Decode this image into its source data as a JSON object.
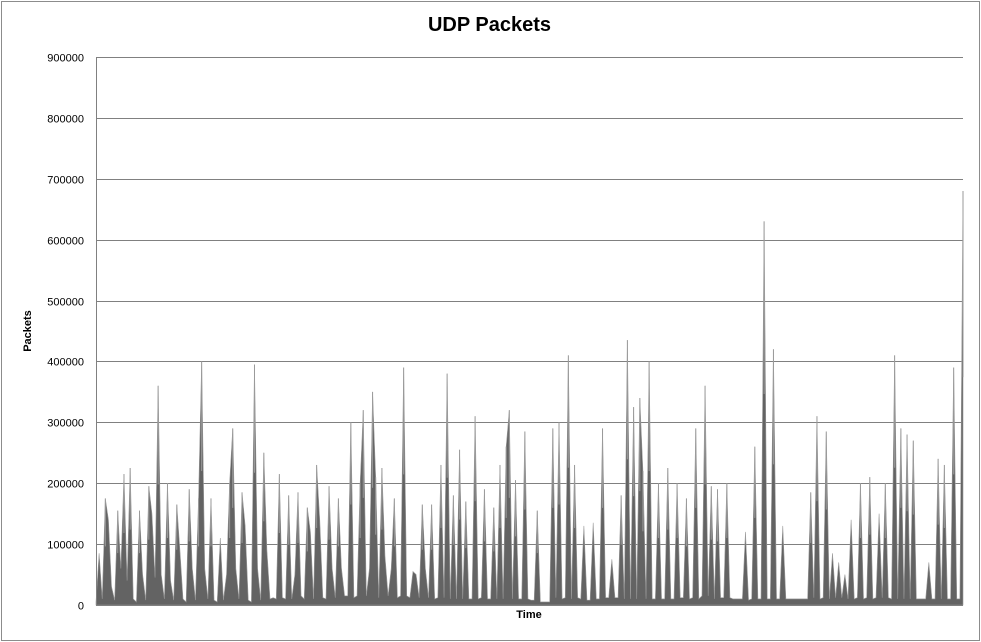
{
  "chart_data": {
    "type": "area",
    "title": "UDP Packets",
    "xlabel": "Time",
    "ylabel": "Packets",
    "ylim": [
      0,
      900000
    ],
    "yticks": [
      "900000",
      "800000",
      "700000",
      "600000",
      "500000",
      "400000",
      "300000",
      "200000",
      "100000",
      "0"
    ],
    "grid": true,
    "legend": "none",
    "colors": {
      "fill": "#636363",
      "spike": "#9a9a9a",
      "grid": "#808080"
    },
    "series": [
      {
        "values": [
          5000,
          85000,
          10000,
          175000,
          140000,
          30000,
          8000,
          155000,
          60000,
          215000,
          40000,
          225000,
          10000,
          5000,
          155000,
          50000,
          8000,
          195000,
          150000,
          45000,
          360000,
          50000,
          10000,
          200000,
          40000,
          8000,
          165000,
          90000,
          10000,
          5000,
          190000,
          60000,
          8000,
          175000,
          400000,
          60000,
          10000,
          175000,
          8000,
          5000,
          110000,
          8000,
          50000,
          200000,
          290000,
          60000,
          10000,
          185000,
          130000,
          8000,
          5000,
          395000,
          60000,
          8000,
          250000,
          90000,
          10000,
          12000,
          10000,
          215000,
          12000,
          10000,
          180000,
          10000,
          50000,
          185000,
          15000,
          10000,
          160000,
          120000,
          10000,
          230000,
          140000,
          12000,
          10000,
          195000,
          60000,
          12000,
          175000,
          60000,
          15000,
          15000,
          300000,
          12000,
          15000,
          200000,
          320000,
          15000,
          60000,
          350000,
          210000,
          12000,
          225000,
          80000,
          15000,
          60000,
          175000,
          12000,
          15000,
          390000,
          15000,
          12000,
          55000,
          50000,
          12000,
          165000,
          60000,
          12000,
          165000,
          10000,
          12000,
          230000,
          12000,
          380000,
          10000,
          180000,
          10000,
          255000,
          10000,
          170000,
          10000,
          10000,
          310000,
          10000,
          12000,
          190000,
          10000,
          10000,
          160000,
          10000,
          230000,
          10000,
          260000,
          320000,
          10000,
          205000,
          10000,
          10000,
          285000,
          10000,
          8000,
          8000,
          155000,
          5000,
          5000,
          5000,
          5000,
          290000,
          12000,
          300000,
          10000,
          12000,
          410000,
          10000,
          230000,
          12000,
          10000,
          130000,
          8000,
          8000,
          135000,
          10000,
          10000,
          290000,
          12000,
          12000,
          75000,
          12000,
          12000,
          180000,
          10000,
          435000,
          10000,
          325000,
          10000,
          340000,
          220000,
          10000,
          400000,
          10000,
          10000,
          200000,
          10000,
          10000,
          225000,
          10000,
          10000,
          200000,
          12000,
          12000,
          175000,
          10000,
          12000,
          290000,
          10000,
          15000,
          360000,
          15000,
          195000,
          10000,
          190000,
          12000,
          12000,
          200000,
          12000,
          10000,
          10000,
          10000,
          10000,
          120000,
          8000,
          10000,
          260000,
          10000,
          10000,
          630000,
          10000,
          10000,
          420000,
          10000,
          10000,
          130000,
          10000,
          10000,
          10000,
          10000,
          10000,
          10000,
          10000,
          10000,
          185000,
          12000,
          310000,
          10000,
          12000,
          285000,
          10000,
          85000,
          12000,
          70000,
          12000,
          50000,
          10000,
          140000,
          10000,
          12000,
          200000,
          10000,
          12000,
          210000,
          10000,
          12000,
          150000,
          12000,
          200000,
          12000,
          10000,
          410000,
          10000,
          290000,
          10000,
          280000,
          10000,
          270000,
          10000,
          10000,
          10000,
          10000,
          70000,
          10000,
          10000,
          240000,
          10000,
          230000,
          10000,
          10000,
          390000,
          10000,
          10000,
          680000
        ]
      }
    ]
  }
}
